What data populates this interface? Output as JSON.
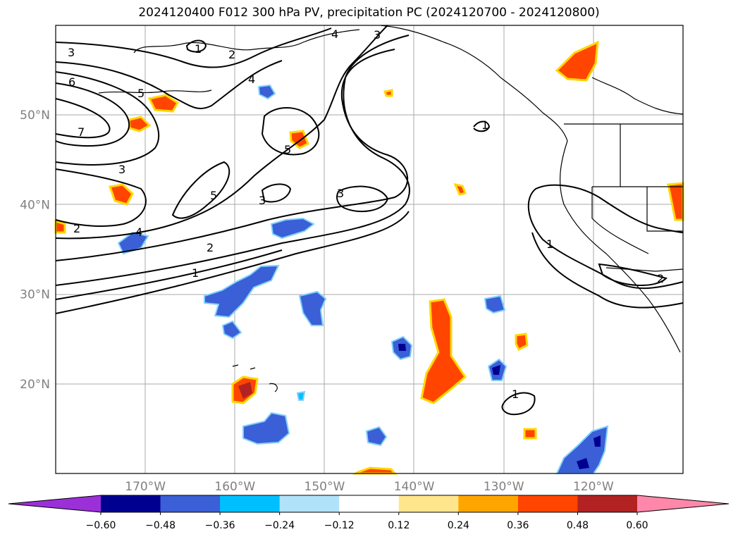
{
  "title": "2024120400 F012 300 hPa PV, precipitation PC (2024120700 - 2024120800)",
  "map": {
    "lat_ticks": [
      {
        "value": 50,
        "label": "50°N"
      },
      {
        "value": 40,
        "label": "40°N"
      },
      {
        "value": 30,
        "label": "30°N"
      },
      {
        "value": 20,
        "label": "20°N"
      }
    ],
    "lon_ticks": [
      {
        "value": -170,
        "label": "170°W"
      },
      {
        "value": -160,
        "label": "160°W"
      },
      {
        "value": -150,
        "label": "150°W"
      },
      {
        "value": -140,
        "label": "140°W"
      },
      {
        "value": -130,
        "label": "130°W"
      },
      {
        "value": -120,
        "label": "120°W"
      }
    ],
    "extent": {
      "lon": [
        -180,
        -110
      ],
      "lat": [
        10,
        60
      ]
    },
    "gridlines": true,
    "contour_labels": [
      "3",
      "6",
      "7",
      "3",
      "2",
      "1",
      "2",
      "4",
      "5",
      "5",
      "3",
      "1",
      "4",
      "3",
      "2",
      "1",
      "1",
      "1",
      "2",
      "4",
      "5"
    ]
  },
  "colorbar": {
    "ticks": [
      "−0.60",
      "−0.48",
      "−0.36",
      "−0.24",
      "−0.12",
      "0.12",
      "0.24",
      "0.36",
      "0.48",
      "0.60"
    ],
    "colors": [
      "#9b30d9",
      "#000090",
      "#3a5fd6",
      "#00bfff",
      "#b0e2fa",
      "#ffffff",
      "#ffe68c",
      "#ffa500",
      "#ff4500",
      "#b22222",
      "#ff88aa"
    ]
  }
}
